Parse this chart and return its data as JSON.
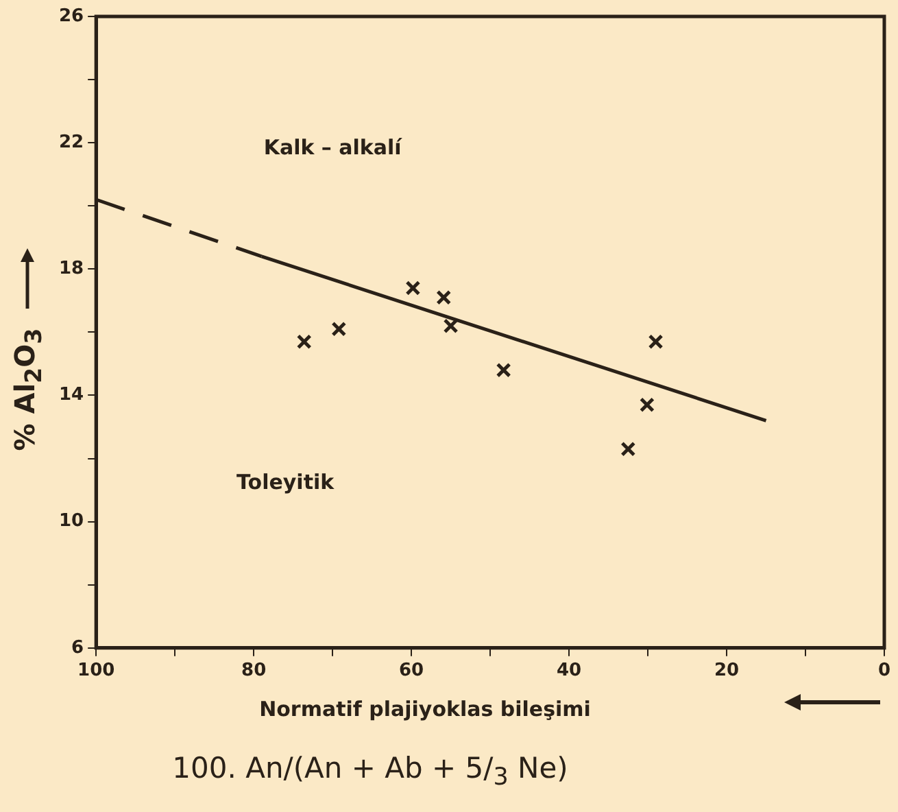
{
  "chart_data": {
    "type": "scatter",
    "xlabel": "Normatif plajiyoklas bileşimi",
    "ylabel": "% Al$_{2}$O$_{3}$",
    "annotations": [
      "Kalk – alkalí",
      "Toleyitik",
      "100. An/(An + Ab + 5/$_{3}$ Ne)"
    ],
    "xlim": [
      100,
      0
    ],
    "xticks": [
      100,
      {
        "value": 90,
        "label": null
      },
      80,
      {
        "value": 70,
        "label": null
      },
      60,
      {
        "value": 50,
        "label": null
      },
      40,
      {
        "value": 30,
        "label": null
      },
      20,
      {
        "value": 10,
        "label": null
      },
      0
    ],
    "ylim": [
      6,
      26
    ],
    "yticks": [
      6,
      {
        "value": 8,
        "label": null
      },
      10,
      {
        "value": 12,
        "label": null
      },
      14,
      {
        "value": 16,
        "label": null
      },
      18,
      {
        "value": 20,
        "label": null
      },
      22,
      {
        "value": 24,
        "label": null
      },
      26
    ],
    "grid": false,
    "legend": false,
    "series": [
      {
        "type": "scatter",
        "color": "#2a2118",
        "marker": "cross",
        "x": [
          73.6,
          69.2,
          59.8,
          55.9,
          55.0,
          48.3,
          29.0,
          30.1,
          32.5
        ],
        "values": [
          15.7,
          16.1,
          17.4,
          17.1,
          16.2,
          14.8,
          15.7,
          13.7,
          12.3
        ]
      },
      {
        "type": "line",
        "color": "#2a2118",
        "marker": "none",
        "line_style": "dashed",
        "x": [
          100,
          79
        ],
        "values": [
          20.2,
          18.4
        ]
      },
      {
        "type": "line",
        "color": "#2a2118",
        "marker": "none",
        "line_style": "solid",
        "x": [
          79,
          15
        ],
        "values": [
          18.4,
          13.2
        ]
      }
    ]
  }
}
